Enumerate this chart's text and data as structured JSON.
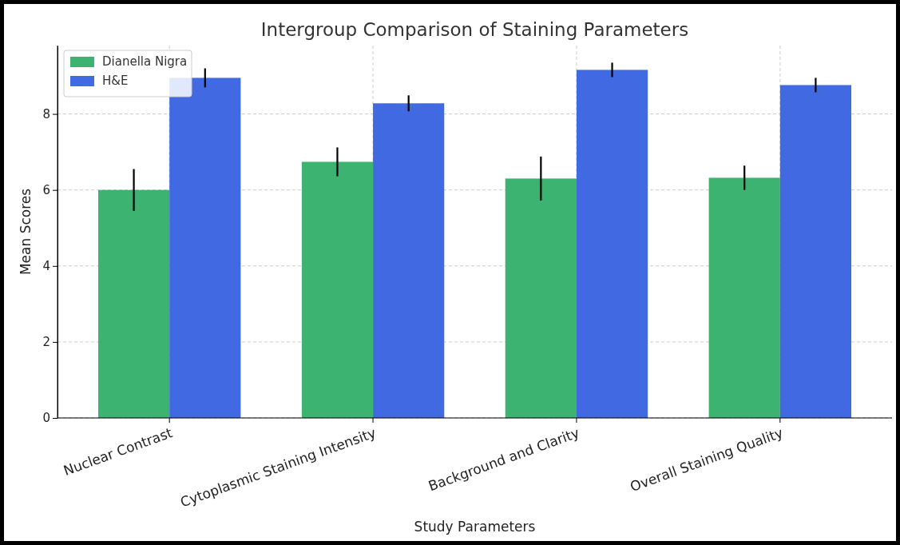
{
  "chart_data": {
    "type": "bar",
    "title": "Intergroup Comparison of Staining Parameters",
    "xlabel": "Study Parameters",
    "ylabel": "Mean Scores",
    "categories": [
      "Nuclear Contrast",
      "Cytoplasmic Staining Intensity",
      "Background and Clarity",
      "Overall Staining Quality"
    ],
    "series": [
      {
        "name": "Dianella Nigra",
        "color": "#3cb371",
        "values": [
          6.0,
          6.74,
          6.3,
          6.32
        ],
        "errors": [
          0.55,
          0.38,
          0.58,
          0.32
        ]
      },
      {
        "name": "H&E",
        "color": "#4169e1",
        "values": [
          8.95,
          8.28,
          9.16,
          8.76
        ],
        "errors": [
          0.25,
          0.21,
          0.19,
          0.19
        ]
      }
    ],
    "ylim": [
      0,
      9.8
    ],
    "yticks": [
      0,
      2,
      4,
      6,
      8
    ],
    "grid": true,
    "legend": "top left"
  }
}
